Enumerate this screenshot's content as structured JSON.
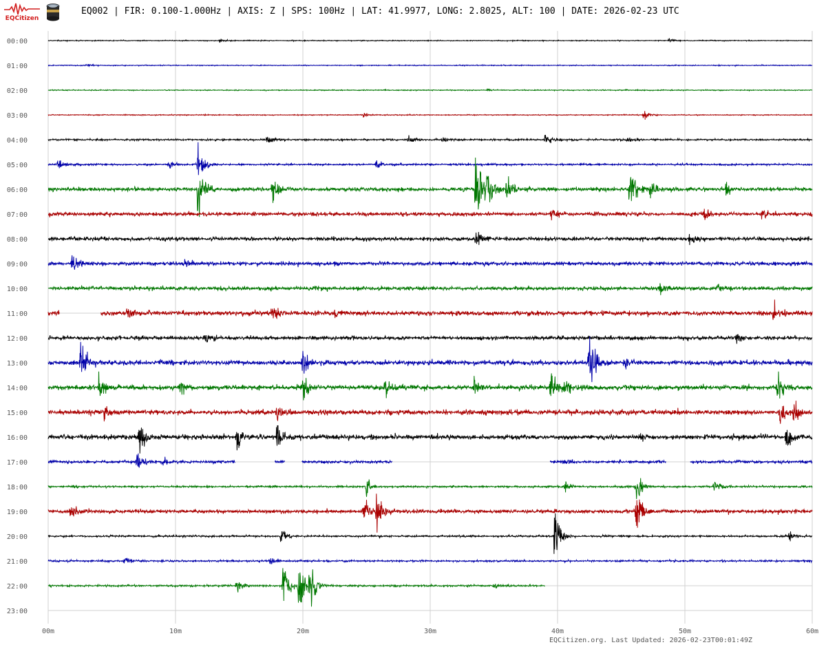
{
  "header": {
    "logo_text": "EQCitizen",
    "logo_icon": "seismograph-logo-icon",
    "sensor_icon": "sensor-device-icon",
    "title": "EQ002 | FIR: 0.100-1.000Hz | AXIS: Z | SPS: 100Hz | LAT: 41.9977, LONG: 2.8025, ALT: 100 | DATE: 2026-02-23 UTC"
  },
  "footer": {
    "text": "EQCitizen.org. Last Updated: 2026-02-23T00:01:49Z"
  },
  "colors": {
    "grid": "#d0d0d0",
    "trace_cycle": [
      "#000000",
      "#0000aa",
      "#007700",
      "#aa0000"
    ],
    "logo": "#d21c1c"
  },
  "chart_data": {
    "type": "line",
    "title": "EQ002 | FIR: 0.100-1.000Hz | AXIS: Z | SPS: 100Hz | LAT: 41.9977, LONG: 2.8025, ALT: 100 | DATE: 2026-02-23 UTC",
    "xlabel": "",
    "ylabel": "",
    "x_unit": "minutes",
    "xlim": [
      0,
      60
    ],
    "x_ticks": [
      "00m",
      "10m",
      "20m",
      "30m",
      "40m",
      "50m",
      "60m"
    ],
    "x_tick_values": [
      0,
      10,
      20,
      30,
      40,
      50,
      60
    ],
    "y_ticks": [
      "00:00",
      "01:00",
      "02:00",
      "03:00",
      "04:00",
      "05:00",
      "06:00",
      "07:00",
      "08:00",
      "09:00",
      "10:00",
      "11:00",
      "12:00",
      "13:00",
      "14:00",
      "15:00",
      "16:00",
      "17:00",
      "18:00",
      "19:00",
      "20:00",
      "21:00",
      "22:00",
      "23:00"
    ],
    "grid": true,
    "series": [
      {
        "hour": "00:00",
        "amplitude": 1,
        "end_minute": 60,
        "gaps": [],
        "events": [
          {
            "minute": 13.5,
            "amp": 4
          },
          {
            "minute": 48.8,
            "amp": 5
          }
        ]
      },
      {
        "hour": "01:00",
        "amplitude": 1,
        "end_minute": 60,
        "gaps": [],
        "events": [
          {
            "minute": 3.0,
            "amp": 4
          }
        ]
      },
      {
        "hour": "02:00",
        "amplitude": 1,
        "end_minute": 60,
        "gaps": [],
        "events": [
          {
            "minute": 34.5,
            "amp": 3
          }
        ]
      },
      {
        "hour": "03:00",
        "amplitude": 1,
        "end_minute": 60,
        "gaps": [],
        "events": [
          {
            "minute": 24.7,
            "amp": 6
          },
          {
            "minute": 46.8,
            "amp": 12
          }
        ]
      },
      {
        "hour": "04:00",
        "amplitude": 2,
        "end_minute": 60,
        "gaps": [],
        "events": [
          {
            "minute": 17.2,
            "amp": 12
          },
          {
            "minute": 28.3,
            "amp": 10
          },
          {
            "minute": 31.0,
            "amp": 8
          },
          {
            "minute": 39.0,
            "amp": 18
          },
          {
            "minute": 45.6,
            "amp": 9
          }
        ]
      },
      {
        "hour": "05:00",
        "amplitude": 2,
        "end_minute": 60,
        "gaps": [],
        "events": [
          {
            "minute": 0.8,
            "amp": 14
          },
          {
            "minute": 9.5,
            "amp": 9
          },
          {
            "minute": 11.8,
            "amp": 52
          },
          {
            "minute": 25.8,
            "amp": 10
          }
        ]
      },
      {
        "hour": "06:00",
        "amplitude": 4,
        "end_minute": 60,
        "gaps": [],
        "events": [
          {
            "minute": 11.8,
            "amp": 85
          },
          {
            "minute": 17.6,
            "amp": 50
          },
          {
            "minute": 33.6,
            "amp": 90
          },
          {
            "minute": 34.4,
            "amp": 70
          },
          {
            "minute": 36.0,
            "amp": 30
          },
          {
            "minute": 45.7,
            "amp": 70
          },
          {
            "minute": 47.3,
            "amp": 30
          },
          {
            "minute": 53.2,
            "amp": 14
          }
        ]
      },
      {
        "hour": "07:00",
        "amplitude": 4,
        "end_minute": 60,
        "gaps": [],
        "events": [
          {
            "minute": 39.5,
            "amp": 12
          },
          {
            "minute": 51.5,
            "amp": 18
          },
          {
            "minute": 56.0,
            "amp": 12
          }
        ]
      },
      {
        "hour": "08:00",
        "amplitude": 4,
        "end_minute": 60,
        "gaps": [],
        "events": [
          {
            "minute": 33.6,
            "amp": 20
          },
          {
            "minute": 50.4,
            "amp": 12
          }
        ]
      },
      {
        "hour": "09:00",
        "amplitude": 4,
        "end_minute": 60,
        "gaps": [],
        "events": [
          {
            "minute": 1.9,
            "amp": 28
          },
          {
            "minute": 10.8,
            "amp": 16
          }
        ]
      },
      {
        "hour": "10:00",
        "amplitude": 4,
        "end_minute": 60,
        "gaps": [],
        "events": [
          {
            "minute": 48.0,
            "amp": 12
          },
          {
            "minute": 52.5,
            "amp": 12
          }
        ]
      },
      {
        "hour": "11:00",
        "amplitude": 5,
        "end_minute": 60,
        "gaps": [
          [
            0.9,
            4.1
          ]
        ],
        "events": [
          {
            "minute": 6.2,
            "amp": 18
          },
          {
            "minute": 17.6,
            "amp": 28
          },
          {
            "minute": 22.5,
            "amp": 10
          },
          {
            "minute": 57.0,
            "amp": 24
          }
        ]
      },
      {
        "hour": "12:00",
        "amplitude": 4,
        "end_minute": 60,
        "gaps": [],
        "events": [
          {
            "minute": 12.4,
            "amp": 14
          },
          {
            "minute": 54.0,
            "amp": 12
          }
        ]
      },
      {
        "hour": "13:00",
        "amplitude": 5,
        "end_minute": 60,
        "gaps": [],
        "events": [
          {
            "minute": 2.6,
            "amp": 60
          },
          {
            "minute": 20.0,
            "amp": 30
          },
          {
            "minute": 42.5,
            "amp": 70
          },
          {
            "minute": 45.3,
            "amp": 16
          }
        ]
      },
      {
        "hour": "14:00",
        "amplitude": 5,
        "end_minute": 60,
        "gaps": [],
        "events": [
          {
            "minute": 4.0,
            "amp": 30
          },
          {
            "minute": 10.3,
            "amp": 25
          },
          {
            "minute": 20.0,
            "amp": 40
          },
          {
            "minute": 26.5,
            "amp": 20
          },
          {
            "minute": 33.5,
            "amp": 20
          },
          {
            "minute": 39.5,
            "amp": 30
          },
          {
            "minute": 40.5,
            "amp": 16
          },
          {
            "minute": 57.3,
            "amp": 40
          }
        ]
      },
      {
        "hour": "15:00",
        "amplitude": 5,
        "end_minute": 60,
        "gaps": [],
        "events": [
          {
            "minute": 4.4,
            "amp": 18
          },
          {
            "minute": 18.0,
            "amp": 22
          },
          {
            "minute": 57.5,
            "amp": 30
          },
          {
            "minute": 58.6,
            "amp": 30
          }
        ]
      },
      {
        "hour": "16:00",
        "amplitude": 5,
        "end_minute": 60,
        "gaps": [],
        "events": [
          {
            "minute": 7.2,
            "amp": 40
          },
          {
            "minute": 14.8,
            "amp": 28
          },
          {
            "minute": 18.0,
            "amp": 40
          },
          {
            "minute": 46.5,
            "amp": 10
          },
          {
            "minute": 58.0,
            "amp": 40
          }
        ]
      },
      {
        "hour": "17:00",
        "amplitude": 3,
        "end_minute": 60,
        "gaps": [
          [
            14.7,
            17.8
          ],
          [
            18.6,
            19.9
          ],
          [
            27.0,
            39.4
          ],
          [
            48.5,
            50.4
          ]
        ],
        "events": [
          {
            "minute": 7.0,
            "amp": 30
          },
          {
            "minute": 9.0,
            "amp": 12
          },
          {
            "minute": 40.5,
            "amp": 12
          }
        ]
      },
      {
        "hour": "18:00",
        "amplitude": 2,
        "end_minute": 60,
        "gaps": [],
        "events": [
          {
            "minute": 25.0,
            "amp": 18
          },
          {
            "minute": 40.6,
            "amp": 14
          },
          {
            "minute": 46.2,
            "amp": 40
          },
          {
            "minute": 52.3,
            "amp": 14
          }
        ]
      },
      {
        "hour": "19:00",
        "amplitude": 4,
        "end_minute": 60,
        "gaps": [],
        "events": [
          {
            "minute": 1.8,
            "amp": 16
          },
          {
            "minute": 24.8,
            "amp": 30
          },
          {
            "minute": 25.8,
            "amp": 58
          },
          {
            "minute": 46.2,
            "amp": 60
          }
        ]
      },
      {
        "hour": "20:00",
        "amplitude": 2,
        "end_minute": 60,
        "gaps": [],
        "events": [
          {
            "minute": 18.3,
            "amp": 18
          },
          {
            "minute": 39.8,
            "amp": 70
          },
          {
            "minute": 58.2,
            "amp": 14
          }
        ]
      },
      {
        "hour": "21:00",
        "amplitude": 2,
        "end_minute": 60,
        "gaps": [],
        "events": [
          {
            "minute": 6.0,
            "amp": 10
          },
          {
            "minute": 17.4,
            "amp": 10
          }
        ]
      },
      {
        "hour": "22:00",
        "amplitude": 2,
        "end_minute": 39,
        "gaps": [],
        "events": [
          {
            "minute": 14.8,
            "amp": 16
          },
          {
            "minute": 18.5,
            "amp": 70
          },
          {
            "minute": 19.7,
            "amp": 88
          },
          {
            "minute": 20.5,
            "amp": 80
          },
          {
            "minute": 35.0,
            "amp": 6
          }
        ]
      },
      {
        "hour": "23:00",
        "amplitude": 0,
        "end_minute": 0,
        "gaps": [],
        "events": []
      }
    ]
  }
}
